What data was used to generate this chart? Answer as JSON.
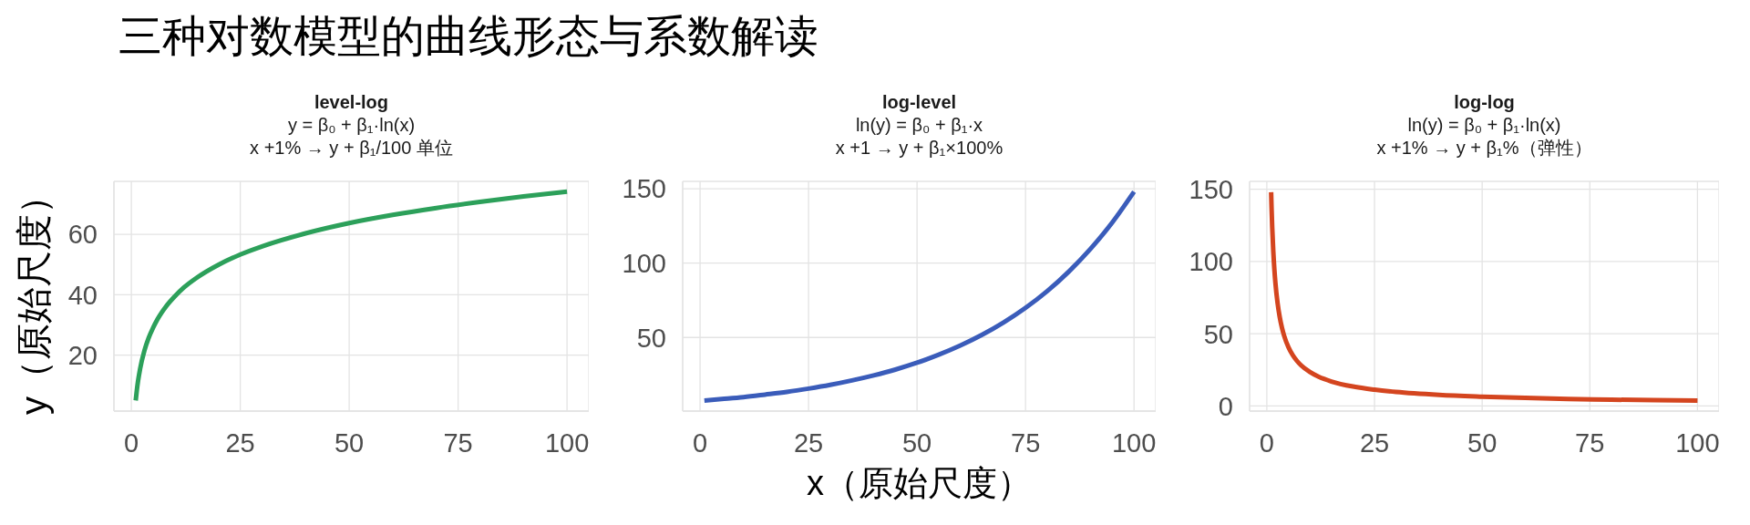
{
  "chart_data": [
    {
      "type": "line",
      "title": "level-log",
      "subtitle": "y = β₀ + β₁·ln(x)\nx +1% → y + β₁/100 单位",
      "ylabel": "y（原始尺度）",
      "annotations": [
        "三种对数模型的曲线形态与系数解读"
      ],
      "x": [
        1,
        1.25,
        1.5,
        2,
        3,
        4,
        5,
        6,
        7,
        8,
        10,
        12,
        15,
        20,
        25,
        30,
        40,
        50,
        60,
        70,
        80,
        90,
        100
      ],
      "values": [
        5.0,
        8.3,
        11.1,
        15.4,
        21.5,
        25.8,
        29.1,
        31.9,
        34.2,
        36.2,
        39.5,
        42.3,
        45.6,
        49.9,
        53.3,
        56.0,
        60.3,
        63.7,
        66.4,
        68.7,
        70.7,
        72.5,
        74.1
      ],
      "color": "#2ca05a",
      "line_style": "solid",
      "xlim": [
        -4,
        105
      ],
      "xticks": [
        0,
        25,
        50,
        75,
        100
      ],
      "ylim": [
        1.5,
        77.5
      ],
      "yticks": [
        20,
        40,
        60
      ],
      "grid": true
    },
    {
      "type": "line",
      "title": "log-level",
      "subtitle": "ln(y) = β₀ + β₁·x\nx +1 → y + β₁×100%",
      "xlabel": "x（原始尺度）",
      "x": [
        1,
        5,
        10,
        15,
        20,
        25,
        30,
        35,
        40,
        45,
        50,
        55,
        60,
        65,
        70,
        75,
        80,
        85,
        90,
        95,
        100
      ],
      "values": [
        7.6,
        8.6,
        9.9,
        11.6,
        13.4,
        15.6,
        18.1,
        21.1,
        24.5,
        28.4,
        33.0,
        38.4,
        44.6,
        51.8,
        60.2,
        69.9,
        81.2,
        94.4,
        109.7,
        127.4,
        148.0
      ],
      "color": "#3a5cba",
      "line_style": "solid",
      "xlim": [
        -4,
        105
      ],
      "xticks": [
        0,
        25,
        50,
        75,
        100
      ],
      "ylim": [
        0.5,
        155
      ],
      "yticks": [
        50,
        100,
        150
      ],
      "grid": true
    },
    {
      "type": "line",
      "title": "log-log",
      "subtitle": "ln(y) = β₀ + β₁·ln(x)\nx +1% → y + β₁%（弹性）",
      "x": [
        1,
        1.1,
        1.25,
        1.5,
        1.75,
        2,
        2.5,
        3,
        3.5,
        4,
        5,
        6,
        7,
        8,
        10,
        12,
        15,
        20,
        25,
        30,
        40,
        50,
        60,
        70,
        80,
        90,
        100
      ],
      "values": [
        148,
        137.1,
        123.8,
        107.0,
        94.6,
        85.0,
        71.1,
        61.5,
        54.3,
        48.8,
        40.8,
        35.3,
        31.2,
        28.0,
        23.5,
        20.3,
        17.0,
        13.5,
        11.3,
        9.7,
        7.7,
        6.5,
        5.6,
        4.9,
        4.4,
        4.0,
        3.7
      ],
      "color": "#d4451f",
      "line_style": "solid",
      "xlim": [
        -4,
        105
      ],
      "xticks": [
        0,
        25,
        50,
        75,
        100
      ],
      "ylim": [
        -3.5,
        155.5
      ],
      "yticks": [
        0,
        50,
        100,
        150
      ],
      "grid": true
    }
  ]
}
